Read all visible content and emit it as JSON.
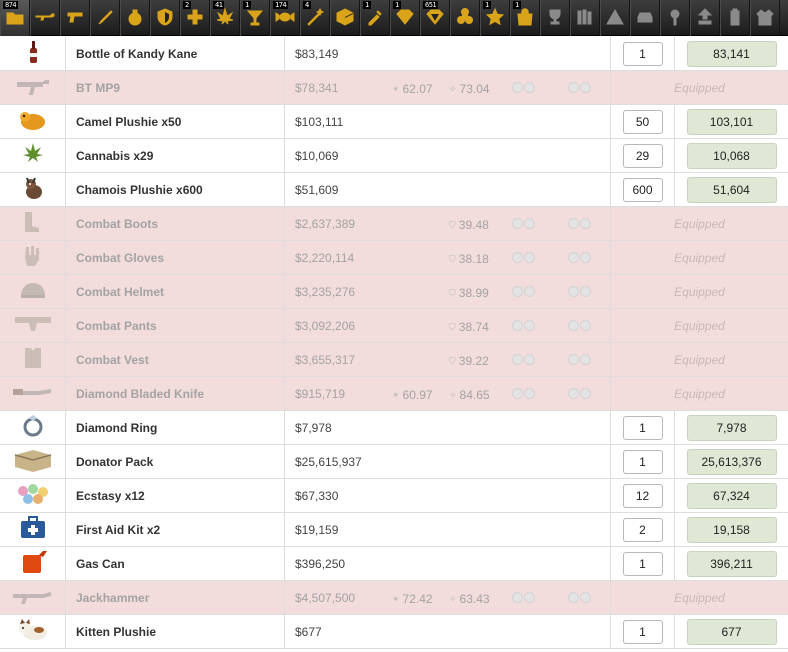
{
  "tabs": [
    {
      "name": "tab-all",
      "icon": "folder-icon",
      "count": "874",
      "active": true
    },
    {
      "name": "tab-primary",
      "icon": "rifle-icon",
      "count": ""
    },
    {
      "name": "tab-secondary",
      "icon": "pistol-icon",
      "count": ""
    },
    {
      "name": "tab-melee",
      "icon": "knife-icon",
      "count": ""
    },
    {
      "name": "tab-temporary",
      "icon": "grenade-icon",
      "count": ""
    },
    {
      "name": "tab-defensive",
      "icon": "shield-icon",
      "count": ""
    },
    {
      "name": "tab-medical",
      "icon": "medical-cross-icon",
      "count": "2"
    },
    {
      "name": "tab-drugs",
      "icon": "cannabis-icon",
      "count": "41"
    },
    {
      "name": "tab-alcohol",
      "icon": "cocktail-icon",
      "count": "1"
    },
    {
      "name": "tab-candy",
      "icon": "candy-icon",
      "count": "174"
    },
    {
      "name": "tab-boosters",
      "icon": "magic-wand-icon",
      "count": "4"
    },
    {
      "name": "tab-supply-packs",
      "icon": "box-icon",
      "count": ""
    },
    {
      "name": "tab-energy-drinks",
      "icon": "syringe-icon",
      "count": "1"
    },
    {
      "name": "tab-jewelry",
      "icon": "diamond-icon",
      "count": "1"
    },
    {
      "name": "tab-collectibles",
      "icon": "gem-icon",
      "count": "651"
    },
    {
      "name": "tab-hazardous",
      "icon": "biohazard-icon",
      "count": ""
    },
    {
      "name": "tab-special",
      "icon": "star-icon",
      "count": "1"
    },
    {
      "name": "tab-enhancers",
      "icon": "shopping-bag-icon",
      "count": "1"
    },
    {
      "name": "tab-trophies",
      "icon": "trophy-icon",
      "count": ""
    },
    {
      "name": "tab-books",
      "icon": "books-icon",
      "count": ""
    },
    {
      "name": "tab-flowers",
      "icon": "pyramid-icon",
      "count": ""
    },
    {
      "name": "tab-cars",
      "icon": "car-icon",
      "count": ""
    },
    {
      "name": "tab-plushies",
      "icon": "flower-icon",
      "count": ""
    },
    {
      "name": "tab-artifacts",
      "icon": "upload-icon",
      "count": ""
    },
    {
      "name": "tab-electronics",
      "icon": "battery-icon",
      "count": ""
    },
    {
      "name": "tab-clothing",
      "icon": "jacket-icon",
      "count": ""
    }
  ],
  "equipped_label": "Equipped",
  "items": [
    {
      "name": "Bottle of Kandy Kane",
      "value": "$83,149",
      "qty": "1",
      "total": "83,141",
      "equipped": false,
      "icon": "bottle-icon"
    },
    {
      "name": "BT MP9",
      "value": "$78,341",
      "equipped": true,
      "damage": "62.07",
      "accuracy": "73.04",
      "icon": "smg-icon"
    },
    {
      "name": "Camel Plushie x50",
      "value": "$103,111",
      "qty": "50",
      "total": "103,101",
      "equipped": false,
      "icon": "camel-plushie-icon"
    },
    {
      "name": "Cannabis x29",
      "value": "$10,069",
      "qty": "29",
      "total": "10,068",
      "equipped": false,
      "icon": "cannabis-leaf-icon"
    },
    {
      "name": "Chamois Plushie x600",
      "value": "$51,609",
      "qty": "600",
      "total": "51,604",
      "equipped": false,
      "icon": "chamois-plushie-icon"
    },
    {
      "name": "Combat Boots",
      "value": "$2,637,389",
      "equipped": true,
      "armor": "39.48",
      "icon": "boots-icon"
    },
    {
      "name": "Combat Gloves",
      "value": "$2,220,114",
      "equipped": true,
      "armor": "38.18",
      "icon": "gloves-icon"
    },
    {
      "name": "Combat Helmet",
      "value": "$3,235,276",
      "equipped": true,
      "armor": "38.99",
      "icon": "helmet-icon"
    },
    {
      "name": "Combat Pants",
      "value": "$3,092,206",
      "equipped": true,
      "armor": "38.74",
      "icon": "pants-icon"
    },
    {
      "name": "Combat Vest",
      "value": "$3,655,317",
      "equipped": true,
      "armor": "39.22",
      "icon": "vest-icon"
    },
    {
      "name": "Diamond Bladed Knife",
      "value": "$915,719",
      "equipped": true,
      "damage": "60.97",
      "accuracy": "84.65",
      "icon": "knife-blade-icon"
    },
    {
      "name": "Diamond Ring",
      "value": "$7,978",
      "qty": "1",
      "total": "7,978",
      "equipped": false,
      "icon": "ring-icon"
    },
    {
      "name": "Donator Pack",
      "value": "$25,615,937",
      "qty": "1",
      "total": "25,613,376",
      "equipped": false,
      "icon": "donator-pack-icon"
    },
    {
      "name": "Ecstasy x12",
      "value": "$67,330",
      "qty": "12",
      "total": "67,324",
      "equipped": false,
      "icon": "pills-icon"
    },
    {
      "name": "First Aid Kit x2",
      "value": "$19,159",
      "qty": "2",
      "total": "19,158",
      "equipped": false,
      "icon": "first-aid-kit-icon"
    },
    {
      "name": "Gas Can",
      "value": "$396,250",
      "qty": "1",
      "total": "396,211",
      "equipped": false,
      "icon": "gas-can-icon"
    },
    {
      "name": "Jackhammer",
      "value": "$4,507,500",
      "equipped": true,
      "damage": "72.42",
      "accuracy": "63.43",
      "icon": "shotgun-icon"
    },
    {
      "name": "Kitten Plushie",
      "value": "$677",
      "qty": "1",
      "total": "677",
      "equipped": false,
      "icon": "kitten-plushie-icon"
    }
  ]
}
